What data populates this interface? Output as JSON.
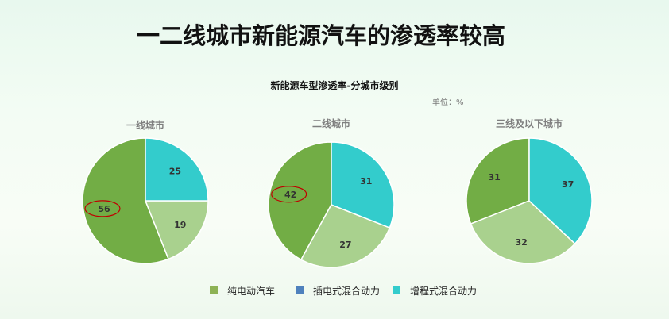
{
  "slide": {
    "title": "一二线城市新能源汽车的渗透率较高"
  },
  "chart_header": {
    "title": "新能源车型渗透率-分城市级别",
    "unit": "单位：%"
  },
  "colors": {
    "纯电动汽车": "#72ad45",
    "插电式混合动力": "#a9d18e",
    "增程式混合动力": "#33cccc",
    "legend_plugin_swatch": "#4f81bd",
    "highlight_ellipse": "#c00000"
  },
  "legend": [
    {
      "label": "纯电动汽车",
      "color": "#8db255"
    },
    {
      "label": "插电式混合动力",
      "color": "#4f81bd"
    },
    {
      "label": "增程式混合动力",
      "color": "#33cccc"
    }
  ],
  "chart_data": [
    {
      "type": "pie",
      "title": "一线城市",
      "series": [
        {
          "name": "纯电动汽车",
          "value": 56
        },
        {
          "name": "插电式混合动力",
          "value": 19
        },
        {
          "name": "增程式混合动力",
          "value": 25
        }
      ],
      "highlighted": "纯电动汽车"
    },
    {
      "type": "pie",
      "title": "二线城市",
      "series": [
        {
          "name": "纯电动汽车",
          "value": 42
        },
        {
          "name": "插电式混合动力",
          "value": 27
        },
        {
          "name": "增程式混合动力",
          "value": 31
        }
      ],
      "highlighted": "纯电动汽车"
    },
    {
      "type": "pie",
      "title": "三线及以下城市",
      "series": [
        {
          "name": "纯电动汽车",
          "value": 31
        },
        {
          "name": "插电式混合动力",
          "value": 32
        },
        {
          "name": "增程式混合动力",
          "value": 37
        }
      ]
    }
  ]
}
